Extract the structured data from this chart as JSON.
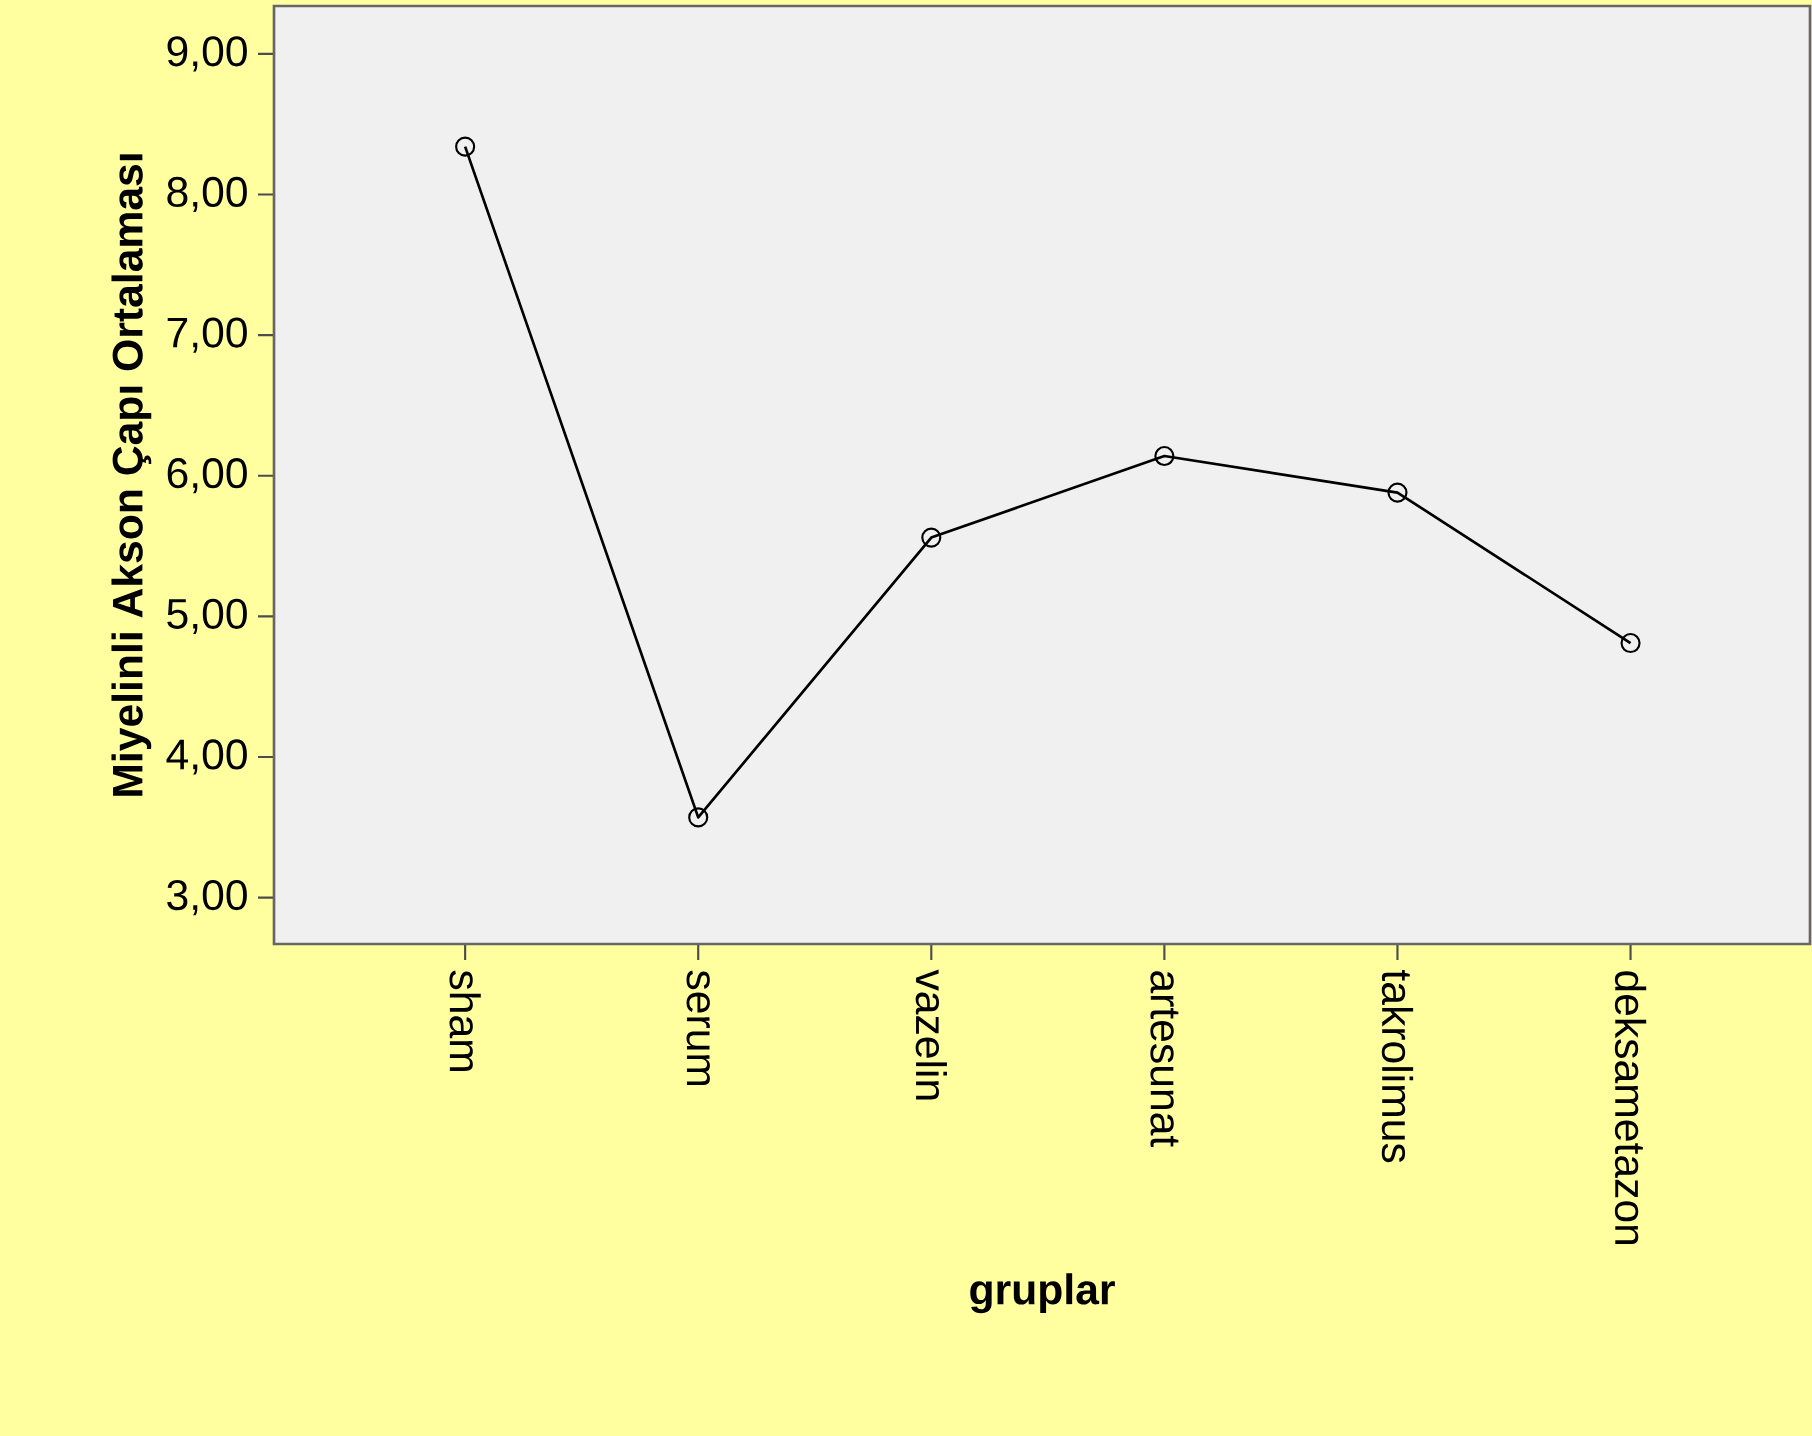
{
  "chart_data": {
    "type": "line",
    "xlabel": "gruplar",
    "ylabel": "Miyelinli Akson Çapı Ortalaması",
    "categories": [
      "sham",
      "serum",
      "vazelin",
      "artesunat",
      "takrolimus",
      "deksametazon"
    ],
    "values": [
      8.34,
      3.57,
      5.56,
      6.14,
      5.88,
      4.81
    ],
    "color": "#000000",
    "marker": "circle",
    "line_style": "solid",
    "ylim": [
      2.67,
      9.34
    ],
    "yticks": [
      {
        "value": 3,
        "label": "3,00"
      },
      {
        "value": 4,
        "label": "4,00"
      },
      {
        "value": 5,
        "label": "5,00"
      },
      {
        "value": 6,
        "label": "6,00"
      },
      {
        "value": 7,
        "label": "7,00"
      },
      {
        "value": 8,
        "label": "8,00"
      },
      {
        "value": 9,
        "label": "9,00"
      }
    ]
  }
}
